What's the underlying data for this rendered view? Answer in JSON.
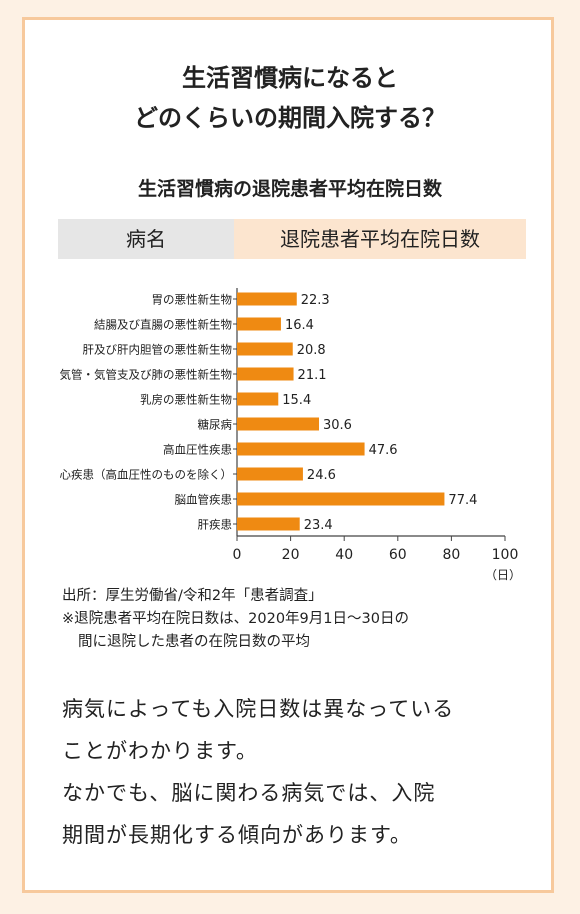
{
  "headline": {
    "line1": "生活習慣病になると",
    "line2": "どのくらいの期間入院する？"
  },
  "table_header": {
    "left": "病名",
    "right": "退院患者平均在院日数"
  },
  "chart_data": {
    "type": "bar",
    "orientation": "horizontal",
    "title": "生活習慣病の退院患者平均在院日数",
    "categories": [
      "胃の悪性新生物",
      "結腸及び直腸の悪性新生物",
      "肝及び肝内胆管の悪性新生物",
      "気管・気管支及び肺の悪性新生物",
      "乳房の悪性新生物",
      "糖尿病",
      "高血圧性疾患",
      "心疾患（高血圧性のものを除く）",
      "脳血管疾患",
      "肝疾患"
    ],
    "values": [
      22.3,
      16.4,
      20.8,
      21.1,
      15.4,
      30.6,
      47.6,
      24.6,
      77.4,
      23.4
    ],
    "value_labels": [
      "22.3",
      "16.4",
      "20.8",
      "21.1",
      "15.4",
      "30.6",
      "47.6",
      "24.6",
      "77.4",
      "23.4"
    ],
    "xlim": [
      0,
      100
    ],
    "xticks": [
      0,
      20,
      40,
      60,
      80,
      100
    ],
    "xlabel": "（日）",
    "bar_color": "#ef8a12",
    "grid": false
  },
  "notes": {
    "source": "出所：厚生労働省/令和2年「患者調査」",
    "footnote_line1": "※退院患者平均在院日数は、2020年9月1日～30日の",
    "footnote_line2": "間に退院した患者の在院日数の平均"
  },
  "body": {
    "line1": "病気によっても入院日数は異なっている",
    "line2": "ことがわかります。",
    "line3": "なかでも、脳に関わる病気では、入院",
    "line4": "期間が長期化する傾向があります。"
  },
  "colors": {
    "background": "#fdf1e4",
    "card_border": "#f7c99c",
    "header_left_bg": "#e6e6e6",
    "header_right_bg": "#fce5cf",
    "bar": "#ef8a12"
  }
}
